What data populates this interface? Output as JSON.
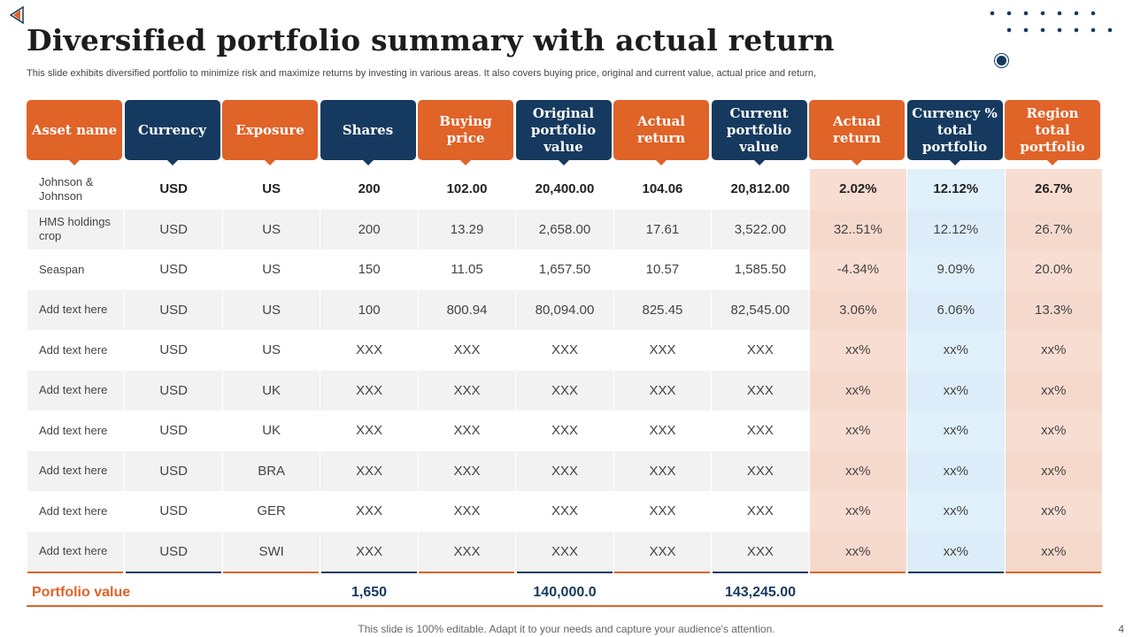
{
  "title": "Diversified portfolio summary with actual return",
  "subtitle": "This slide exhibits diversified portfolio to minimize risk and maximize returns by investing in various areas. It also covers buying price, original and current value, actual price and return,",
  "colors": {
    "orange": "#e06328",
    "navy": "#163a5f",
    "pink": "#f8ddd2",
    "light_blue": "#e0f0fb"
  },
  "headers": [
    {
      "label": "Asset name",
      "color": "orange"
    },
    {
      "label": "Currency",
      "color": "navy"
    },
    {
      "label": "Exposure",
      "color": "orange"
    },
    {
      "label": "Shares",
      "color": "navy"
    },
    {
      "label": "Buying price",
      "color": "orange"
    },
    {
      "label": "Original portfolio value",
      "color": "navy"
    },
    {
      "label": "Actual return",
      "color": "orange"
    },
    {
      "label": "Current portfolio value",
      "color": "navy"
    },
    {
      "label": "Actual return",
      "color": "orange"
    },
    {
      "label": "Currency % total portfolio",
      "color": "navy"
    },
    {
      "label": "Region total portfolio",
      "color": "orange"
    }
  ],
  "rows": [
    [
      "Johnson & Johnson",
      "USD",
      "US",
      "200",
      "102.00",
      "20,400.00",
      "104.06",
      "20,812.00",
      "2.02%",
      "12.12%",
      "26.7%"
    ],
    [
      "HMS holdings crop",
      "USD",
      "US",
      "200",
      "13.29",
      "2,658.00",
      "17.61",
      "3,522.00",
      "32..51%",
      "12.12%",
      "26.7%"
    ],
    [
      "Seaspan",
      "USD",
      "US",
      "150",
      "11.05",
      "1,657.50",
      "10.57",
      "1,585.50",
      "-4.34%",
      "9.09%",
      "20.0%"
    ],
    [
      "Add text here",
      "USD",
      "US",
      "100",
      "800.94",
      "80,094.00",
      "825.45",
      "82,545.00",
      "3.06%",
      "6.06%",
      "13.3%"
    ],
    [
      "Add text here",
      "USD",
      "US",
      "XXX",
      "XXX",
      "XXX",
      "XXX",
      "XXX",
      "xx%",
      "xx%",
      "xx%"
    ],
    [
      "Add text here",
      "USD",
      "UK",
      "XXX",
      "XXX",
      "XXX",
      "XXX",
      "XXX",
      "xx%",
      "xx%",
      "xx%"
    ],
    [
      "Add text here",
      "USD",
      "UK",
      "XXX",
      "XXX",
      "XXX",
      "XXX",
      "XXX",
      "xx%",
      "xx%",
      "xx%"
    ],
    [
      "Add text here",
      "USD",
      "BRA",
      "XXX",
      "XXX",
      "XXX",
      "XXX",
      "XXX",
      "xx%",
      "xx%",
      "xx%"
    ],
    [
      "Add text here",
      "USD",
      "GER",
      "XXX",
      "XXX",
      "XXX",
      "XXX",
      "XXX",
      "xx%",
      "xx%",
      "xx%"
    ],
    [
      "Add text here",
      "USD",
      "SWI",
      "XXX",
      "XXX",
      "XXX",
      "XXX",
      "XXX",
      "xx%",
      "xx%",
      "xx%"
    ]
  ],
  "footer": {
    "label": "Portfolio value",
    "shares_total": "1,650",
    "original_total": "140,000.0",
    "current_total": "143,245.00"
  },
  "bottom_note": "This slide is 100% editable. Adapt it to your needs and capture your audience's attention.",
  "page_number": "4"
}
